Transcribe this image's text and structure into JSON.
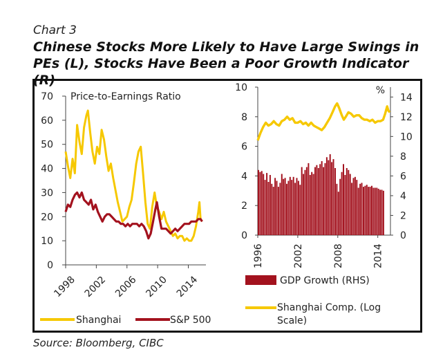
{
  "header": {
    "chart_number": "Chart 3",
    "title": "Chinese Stocks More Likely to Have Large Swings in PEs (L), Stocks Have Been a Poor Growth Indicator (R)"
  },
  "source": "Source: Bloomberg, CIBC",
  "colors": {
    "shanghai": "#f6c800",
    "sp500": "#a3121e",
    "gdp": "#a3121e",
    "axis": "#444444"
  },
  "chart_data": [
    {
      "type": "line",
      "title": "Price-to-Earnings Ratio",
      "ylim": [
        0,
        70
      ],
      "yticks": [
        0,
        10,
        20,
        30,
        40,
        50,
        60,
        70
      ],
      "xlim": [
        1998,
        2016.3
      ],
      "xticks": [
        1998,
        2002,
        2006,
        2010,
        2014
      ],
      "legend_placement": "bottom",
      "series": [
        {
          "name": "Shanghai",
          "color": "#f6c800",
          "points": [
            [
              1998.0,
              47
            ],
            [
              1998.3,
              41
            ],
            [
              1998.6,
              36
            ],
            [
              1998.9,
              44
            ],
            [
              1999.2,
              38
            ],
            [
              1999.5,
              58
            ],
            [
              1999.8,
              51
            ],
            [
              2000.1,
              46
            ],
            [
              2000.4,
              57
            ],
            [
              2000.7,
              62
            ],
            [
              2000.9,
              64
            ],
            [
              2001.2,
              55
            ],
            [
              2001.5,
              47
            ],
            [
              2001.8,
              42
            ],
            [
              2002.1,
              49
            ],
            [
              2002.4,
              46
            ],
            [
              2002.7,
              56
            ],
            [
              2003.0,
              52
            ],
            [
              2003.3,
              45
            ],
            [
              2003.6,
              39
            ],
            [
              2003.9,
              42
            ],
            [
              2004.2,
              36
            ],
            [
              2004.5,
              31
            ],
            [
              2004.8,
              26
            ],
            [
              2005.1,
              22
            ],
            [
              2005.4,
              18
            ],
            [
              2005.7,
              19
            ],
            [
              2006.0,
              20
            ],
            [
              2006.3,
              24
            ],
            [
              2006.6,
              27
            ],
            [
              2006.9,
              34
            ],
            [
              2007.2,
              42
            ],
            [
              2007.5,
              47
            ],
            [
              2007.8,
              49
            ],
            [
              2008.1,
              38
            ],
            [
              2008.4,
              26
            ],
            [
              2008.7,
              17
            ],
            [
              2009.0,
              15
            ],
            [
              2009.3,
              24
            ],
            [
              2009.6,
              30
            ],
            [
              2009.9,
              24
            ],
            [
              2010.2,
              22
            ],
            [
              2010.5,
              19
            ],
            [
              2010.8,
              22
            ],
            [
              2011.1,
              18
            ],
            [
              2011.4,
              16
            ],
            [
              2011.7,
              14
            ],
            [
              2012.0,
              12
            ],
            [
              2012.3,
              13
            ],
            [
              2012.6,
              11
            ],
            [
              2012.9,
              12
            ],
            [
              2013.2,
              12
            ],
            [
              2013.5,
              10
            ],
            [
              2013.8,
              11
            ],
            [
              2014.1,
              10
            ],
            [
              2014.4,
              10
            ],
            [
              2014.7,
              12
            ],
            [
              2015.0,
              16
            ],
            [
              2015.3,
              22
            ],
            [
              2015.45,
              26
            ],
            [
              2015.6,
              19
            ],
            [
              2015.8,
              18
            ]
          ]
        },
        {
          "name": "S&P 500",
          "color": "#a3121e",
          "points": [
            [
              1998.0,
              22
            ],
            [
              1998.3,
              25
            ],
            [
              1998.6,
              24
            ],
            [
              1998.9,
              27
            ],
            [
              1999.2,
              29
            ],
            [
              1999.5,
              30
            ],
            [
              1999.8,
              28
            ],
            [
              2000.1,
              30
            ],
            [
              2000.4,
              27
            ],
            [
              2000.7,
              26
            ],
            [
              2001.0,
              25
            ],
            [
              2001.3,
              27
            ],
            [
              2001.6,
              23
            ],
            [
              2001.9,
              25
            ],
            [
              2002.2,
              22
            ],
            [
              2002.5,
              20
            ],
            [
              2002.8,
              18
            ],
            [
              2003.1,
              20
            ],
            [
              2003.4,
              21
            ],
            [
              2003.7,
              21
            ],
            [
              2004.0,
              20
            ],
            [
              2004.3,
              19
            ],
            [
              2004.6,
              18
            ],
            [
              2004.9,
              18
            ],
            [
              2005.2,
              17
            ],
            [
              2005.5,
              17
            ],
            [
              2005.8,
              16
            ],
            [
              2006.1,
              17
            ],
            [
              2006.4,
              16
            ],
            [
              2006.7,
              17
            ],
            [
              2007.0,
              17
            ],
            [
              2007.3,
              17
            ],
            [
              2007.6,
              16
            ],
            [
              2007.9,
              17
            ],
            [
              2008.2,
              16
            ],
            [
              2008.5,
              14
            ],
            [
              2008.8,
              11
            ],
            [
              2009.1,
              13
            ],
            [
              2009.4,
              18
            ],
            [
              2009.7,
              23
            ],
            [
              2009.9,
              26
            ],
            [
              2010.2,
              20
            ],
            [
              2010.5,
              15
            ],
            [
              2010.8,
              15
            ],
            [
              2011.1,
              15
            ],
            [
              2011.4,
              14
            ],
            [
              2011.7,
              13
            ],
            [
              2012.0,
              14
            ],
            [
              2012.3,
              15
            ],
            [
              2012.6,
              14
            ],
            [
              2012.9,
              15
            ],
            [
              2013.2,
              16
            ],
            [
              2013.5,
              17
            ],
            [
              2013.8,
              17
            ],
            [
              2014.1,
              17
            ],
            [
              2014.4,
              18
            ],
            [
              2014.7,
              18
            ],
            [
              2015.0,
              18
            ],
            [
              2015.3,
              19
            ],
            [
              2015.6,
              19
            ],
            [
              2015.8,
              18
            ]
          ]
        }
      ]
    },
    {
      "type": "bar",
      "left_ylim": [
        0,
        10
      ],
      "left_yticks": [
        0,
        2,
        4,
        6,
        8,
        10
      ],
      "right_ylim": [
        0,
        15
      ],
      "right_yticks": [
        0,
        2,
        4,
        6,
        8,
        10,
        12,
        14
      ],
      "right_unit": "%",
      "xlim": [
        1996,
        2015.9
      ],
      "xticks": [
        1996,
        2002,
        2008,
        2014
      ],
      "legend_placement": "bottom",
      "series": [
        {
          "name": "GDP Growth (RHS)",
          "color": "#a3121e",
          "start": 1996.0,
          "step": 0.25,
          "values": [
            6.6,
            6.4,
            6.5,
            6.2,
            5.6,
            6.3,
            5.4,
            6.1,
            5.2,
            4.9,
            5.8,
            5.5,
            4.9,
            5.3,
            6.2,
            5.7,
            5.8,
            5.2,
            5.5,
            5.9,
            5.6,
            5.9,
            5.3,
            5.8,
            5.5,
            5.1,
            6.9,
            6.2,
            6.6,
            6.9,
            7.3,
            6.1,
            6.4,
            6.2,
            6.9,
            7.1,
            6.8,
            7.2,
            7.5,
            6.9,
            7.3,
            7.9,
            7.6,
            8.2,
            7.4,
            7.7,
            6.8,
            5.2,
            4.4,
            5.7,
            6.4,
            7.2,
            6.1,
            6.8,
            6.6,
            6.2,
            5.3,
            5.8,
            5.9,
            5.6,
            4.8,
            5.2,
            5.3,
            4.9,
            5.0,
            5.1,
            4.9,
            4.9,
            5.0,
            4.8,
            4.8,
            4.8,
            4.7,
            4.6,
            4.6,
            4.5
          ]
        },
        {
          "name": "Shanghai Comp. (Log Scale)",
          "color": "#f6c800",
          "axis": "left",
          "points": [
            [
              1996.0,
              6.4
            ],
            [
              1996.4,
              6.9
            ],
            [
              1996.8,
              7.3
            ],
            [
              1997.2,
              7.6
            ],
            [
              1997.6,
              7.4
            ],
            [
              1998.0,
              7.5
            ],
            [
              1998.4,
              7.7
            ],
            [
              1998.8,
              7.5
            ],
            [
              1999.2,
              7.4
            ],
            [
              1999.6,
              7.7
            ],
            [
              2000.0,
              7.8
            ],
            [
              2000.4,
              8.0
            ],
            [
              2000.8,
              7.8
            ],
            [
              2001.2,
              7.9
            ],
            [
              2001.6,
              7.6
            ],
            [
              2002.0,
              7.6
            ],
            [
              2002.4,
              7.7
            ],
            [
              2002.8,
              7.5
            ],
            [
              2003.2,
              7.6
            ],
            [
              2003.6,
              7.4
            ],
            [
              2004.0,
              7.6
            ],
            [
              2004.4,
              7.4
            ],
            [
              2004.8,
              7.3
            ],
            [
              2005.2,
              7.2
            ],
            [
              2005.6,
              7.1
            ],
            [
              2006.0,
              7.3
            ],
            [
              2006.4,
              7.6
            ],
            [
              2006.8,
              7.9
            ],
            [
              2007.2,
              8.3
            ],
            [
              2007.6,
              8.7
            ],
            [
              2007.9,
              8.9
            ],
            [
              2008.2,
              8.6
            ],
            [
              2008.6,
              8.1
            ],
            [
              2008.9,
              7.8
            ],
            [
              2009.2,
              8.0
            ],
            [
              2009.6,
              8.3
            ],
            [
              2010.0,
              8.2
            ],
            [
              2010.4,
              8.0
            ],
            [
              2010.8,
              8.1
            ],
            [
              2011.2,
              8.1
            ],
            [
              2011.6,
              7.9
            ],
            [
              2012.0,
              7.8
            ],
            [
              2012.4,
              7.8
            ],
            [
              2012.8,
              7.7
            ],
            [
              2013.2,
              7.8
            ],
            [
              2013.6,
              7.6
            ],
            [
              2014.0,
              7.7
            ],
            [
              2014.4,
              7.7
            ],
            [
              2014.8,
              7.8
            ],
            [
              2015.1,
              8.2
            ],
            [
              2015.4,
              8.7
            ],
            [
              2015.6,
              8.4
            ],
            [
              2015.8,
              8.3
            ]
          ]
        }
      ]
    }
  ]
}
